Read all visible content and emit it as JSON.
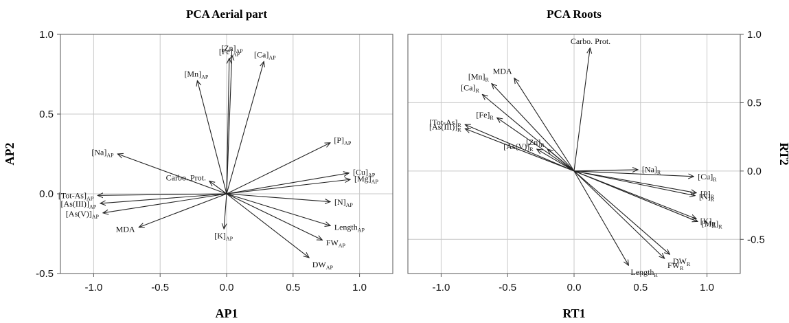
{
  "chart_data": [
    {
      "type": "scatter",
      "subtype": "biplot",
      "title": "PCA Aerial part",
      "xlabel": "AP1",
      "ylabel": "AP2",
      "xlim": [
        -1.25,
        1.25
      ],
      "ylim": [
        -0.5,
        1.0
      ],
      "xticks": [
        "-1.0",
        "-0.5",
        "0.0",
        "0.5",
        "1.0"
      ],
      "yticks": [
        "-0.5",
        "0.0",
        "0.5",
        "1.0"
      ],
      "grid": true,
      "y_axis_side": "left",
      "vectors": [
        {
          "base": "[Fe]",
          "sub": "AP",
          "x": 0.02,
          "y": 0.85
        },
        {
          "base": "[Zn]",
          "sub": "AP",
          "x": 0.04,
          "y": 0.87
        },
        {
          "base": "[Ca]",
          "sub": "AP",
          "x": 0.28,
          "y": 0.83
        },
        {
          "base": "[Mn]",
          "sub": "AP",
          "x": -0.22,
          "y": 0.71
        },
        {
          "base": "[Na]",
          "sub": "AP",
          "x": -0.82,
          "y": 0.25
        },
        {
          "base": "Carbo. Prot.",
          "sub": "",
          "x": -0.13,
          "y": 0.08
        },
        {
          "base": "[Tot-As]",
          "sub": "AP",
          "x": -0.97,
          "y": -0.01
        },
        {
          "base": "[As(III)]",
          "sub": "AP",
          "x": -0.95,
          "y": -0.06
        },
        {
          "base": "[As(V)]",
          "sub": "AP",
          "x": -0.93,
          "y": -0.12
        },
        {
          "base": "MDA",
          "sub": "",
          "x": -0.66,
          "y": -0.21
        },
        {
          "base": "[K]",
          "sub": "AP",
          "x": -0.02,
          "y": -0.22
        },
        {
          "base": "[P]",
          "sub": "AP",
          "x": 0.78,
          "y": 0.32
        },
        {
          "base": "[Cu]",
          "sub": "AP",
          "x": 0.92,
          "y": 0.13
        },
        {
          "base": "[Mg]",
          "sub": "AP",
          "x": 0.93,
          "y": 0.09
        },
        {
          "base": "[N]",
          "sub": "AP",
          "x": 0.78,
          "y": -0.05
        },
        {
          "base": "Length",
          "sub": "AP",
          "x": 0.78,
          "y": -0.2
        },
        {
          "base": "FW",
          "sub": "AP",
          "x": 0.72,
          "y": -0.29
        },
        {
          "base": "DW",
          "sub": "AP",
          "x": 0.62,
          "y": -0.4
        }
      ]
    },
    {
      "type": "scatter",
      "subtype": "biplot",
      "title": "PCA Roots",
      "xlabel": "RT1",
      "ylabel": "RT2",
      "xlim": [
        -1.25,
        1.25
      ],
      "ylim": [
        -0.75,
        1.0
      ],
      "xticks": [
        "-1.0",
        "-0.5",
        "0.0",
        "0.5",
        "1.0"
      ],
      "yticks": [
        "-0.5",
        "0.0",
        "0.5",
        "1.0"
      ],
      "grid": true,
      "y_axis_side": "right",
      "vectors": [
        {
          "base": "Carbo. Prot.",
          "sub": "",
          "x": 0.12,
          "y": 0.9
        },
        {
          "base": "MDA",
          "sub": "",
          "x": -0.45,
          "y": 0.68
        },
        {
          "base": "[Mn]",
          "sub": "R",
          "x": -0.62,
          "y": 0.64
        },
        {
          "base": "[Ca]",
          "sub": "R",
          "x": -0.69,
          "y": 0.56
        },
        {
          "base": "[Fe]",
          "sub": "R",
          "x": -0.58,
          "y": 0.39
        },
        {
          "base": "[Tot-As]",
          "sub": "R",
          "x": -0.82,
          "y": 0.34
        },
        {
          "base": "[As(III)]",
          "sub": "R",
          "x": -0.82,
          "y": 0.31
        },
        {
          "base": "[As(V)]",
          "sub": "R",
          "x": -0.28,
          "y": 0.16
        },
        {
          "base": "[Zn]",
          "sub": "R",
          "x": -0.2,
          "y": 0.16
        },
        {
          "base": "[Na]",
          "sub": "R",
          "x": 0.48,
          "y": 0.01
        },
        {
          "base": "[Cu]",
          "sub": "R",
          "x": 0.9,
          "y": -0.04
        },
        {
          "base": "[P]",
          "sub": "R",
          "x": 0.92,
          "y": -0.16
        },
        {
          "base": "[N]",
          "sub": "R",
          "x": 0.91,
          "y": -0.18
        },
        {
          "base": "[K]",
          "sub": "R",
          "x": 0.92,
          "y": -0.35
        },
        {
          "base": "[Mg]",
          "sub": "R",
          "x": 0.93,
          "y": -0.37
        },
        {
          "base": "DW",
          "sub": "R",
          "x": 0.72,
          "y": -0.61
        },
        {
          "base": "FW",
          "sub": "R",
          "x": 0.68,
          "y": -0.64
        },
        {
          "base": "Length",
          "sub": "R",
          "x": 0.41,
          "y": -0.69
        }
      ]
    }
  ]
}
